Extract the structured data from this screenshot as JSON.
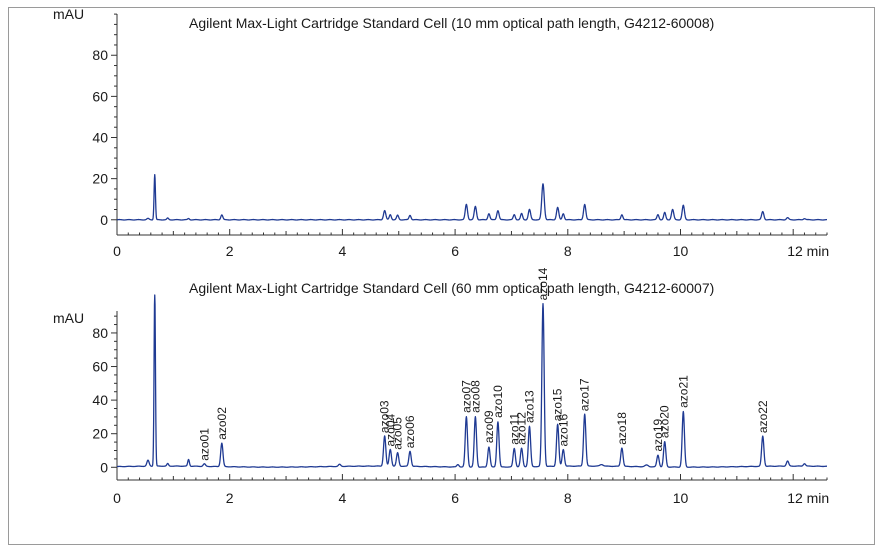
{
  "chart_data": [
    {
      "type": "line",
      "title": "Agilent Max-Light Cartridge Standard Cell (10 mm optical path length, G4212-60008)",
      "ylabel": "mAU",
      "xunit": "min",
      "xlim": [
        0,
        12.6
      ],
      "ylim": [
        -4,
        102
      ],
      "xticks": [
        0,
        2,
        4,
        6,
        8,
        10,
        12
      ],
      "xtick_labels": [
        "0",
        "2",
        "4",
        "6",
        "8",
        "10",
        "12 min"
      ],
      "yticks": [
        0,
        20,
        40,
        60,
        80
      ],
      "ytick_labels": [
        "0",
        "20",
        "40",
        "60",
        "80"
      ],
      "grid": false,
      "color": "#1f3a93",
      "peaks": [
        [
          0.55,
          0.6,
          0.02
        ],
        [
          0.67,
          22,
          0.012
        ],
        [
          0.9,
          0.8,
          0.015
        ],
        [
          1.27,
          0.6,
          0.015
        ],
        [
          1.86,
          2.4,
          0.018
        ],
        [
          4.75,
          4.5,
          0.02
        ],
        [
          4.85,
          2.5,
          0.018
        ],
        [
          4.98,
          2.2,
          0.018
        ],
        [
          5.2,
          2.2,
          0.018
        ],
        [
          6.2,
          7.5,
          0.02
        ],
        [
          6.36,
          6.5,
          0.02
        ],
        [
          6.6,
          3,
          0.018
        ],
        [
          6.76,
          4.5,
          0.02
        ],
        [
          7.05,
          2.5,
          0.018
        ],
        [
          7.18,
          3,
          0.018
        ],
        [
          7.32,
          5,
          0.02
        ],
        [
          7.56,
          17.5,
          0.022
        ],
        [
          7.82,
          6,
          0.02
        ],
        [
          7.92,
          3,
          0.018
        ],
        [
          8.3,
          7.5,
          0.02
        ],
        [
          8.96,
          2.5,
          0.018
        ],
        [
          9.6,
          2.5,
          0.018
        ],
        [
          9.72,
          3.5,
          0.018
        ],
        [
          9.86,
          5,
          0.02
        ],
        [
          10.05,
          7,
          0.02
        ],
        [
          11.46,
          4,
          0.02
        ],
        [
          11.9,
          1,
          0.02
        ],
        [
          12.2,
          0.6,
          0.02
        ]
      ]
    },
    {
      "type": "line",
      "title": "Agilent Max-Light Cartridge Standard Cell (60 mm optical path length, G4212-60007)",
      "ylabel": "mAU",
      "xunit": "min",
      "xlim": [
        0,
        12.6
      ],
      "ylim": [
        -4,
        102
      ],
      "xticks": [
        0,
        2,
        4,
        6,
        8,
        10,
        12
      ],
      "xtick_labels": [
        "0",
        "2",
        "4",
        "6",
        "8",
        "10",
        "12 min"
      ],
      "yticks": [
        0,
        20,
        40,
        60,
        80
      ],
      "ytick_labels": [
        "0",
        "20",
        "40",
        "60",
        "80"
      ],
      "grid": false,
      "color": "#1f3a93",
      "peaks": [
        [
          0.55,
          3.5,
          0.02
        ],
        [
          0.67,
          105,
          0.012
        ],
        [
          0.9,
          1.5,
          0.015
        ],
        [
          1.27,
          4,
          0.015
        ],
        [
          3.95,
          1.2,
          0.02
        ],
        [
          6.05,
          1.5,
          0.02
        ],
        [
          8.6,
          1,
          0.03
        ],
        [
          9.4,
          1,
          0.03
        ],
        [
          11.9,
          3,
          0.02
        ],
        [
          12.2,
          1.5,
          0.02
        ]
      ],
      "labeled_peaks": [
        {
          "label": "azo01",
          "x": 1.55,
          "y": 1.5
        },
        {
          "label": "azo02",
          "x": 1.86,
          "y": 14
        },
        {
          "label": "azo03",
          "x": 4.75,
          "y": 18
        },
        {
          "label": "azo04",
          "x": 4.85,
          "y": 10
        },
        {
          "label": "azo05",
          "x": 4.98,
          "y": 8
        },
        {
          "label": "azo06",
          "x": 5.2,
          "y": 9
        },
        {
          "label": "azo07",
          "x": 6.2,
          "y": 30
        },
        {
          "label": "azo08",
          "x": 6.36,
          "y": 30
        },
        {
          "label": "azo09",
          "x": 6.6,
          "y": 12
        },
        {
          "label": "azo10",
          "x": 6.76,
          "y": 27
        },
        {
          "label": "azo11",
          "x": 7.05,
          "y": 11
        },
        {
          "label": "azo12",
          "x": 7.18,
          "y": 11
        },
        {
          "label": "azo13",
          "x": 7.32,
          "y": 24
        },
        {
          "label": "azo14",
          "x": 7.56,
          "y": 97
        },
        {
          "label": "azo15",
          "x": 7.82,
          "y": 25
        },
        {
          "label": "azo16",
          "x": 7.92,
          "y": 10
        },
        {
          "label": "azo17",
          "x": 8.3,
          "y": 31
        },
        {
          "label": "azo18",
          "x": 8.96,
          "y": 11
        },
        {
          "label": "azo19",
          "x": 9.6,
          "y": 7
        },
        {
          "label": "azo20",
          "x": 9.72,
          "y": 15
        },
        {
          "label": "azo21",
          "x": 10.05,
          "y": 33
        },
        {
          "label": "azo22",
          "x": 11.46,
          "y": 18
        }
      ]
    }
  ]
}
